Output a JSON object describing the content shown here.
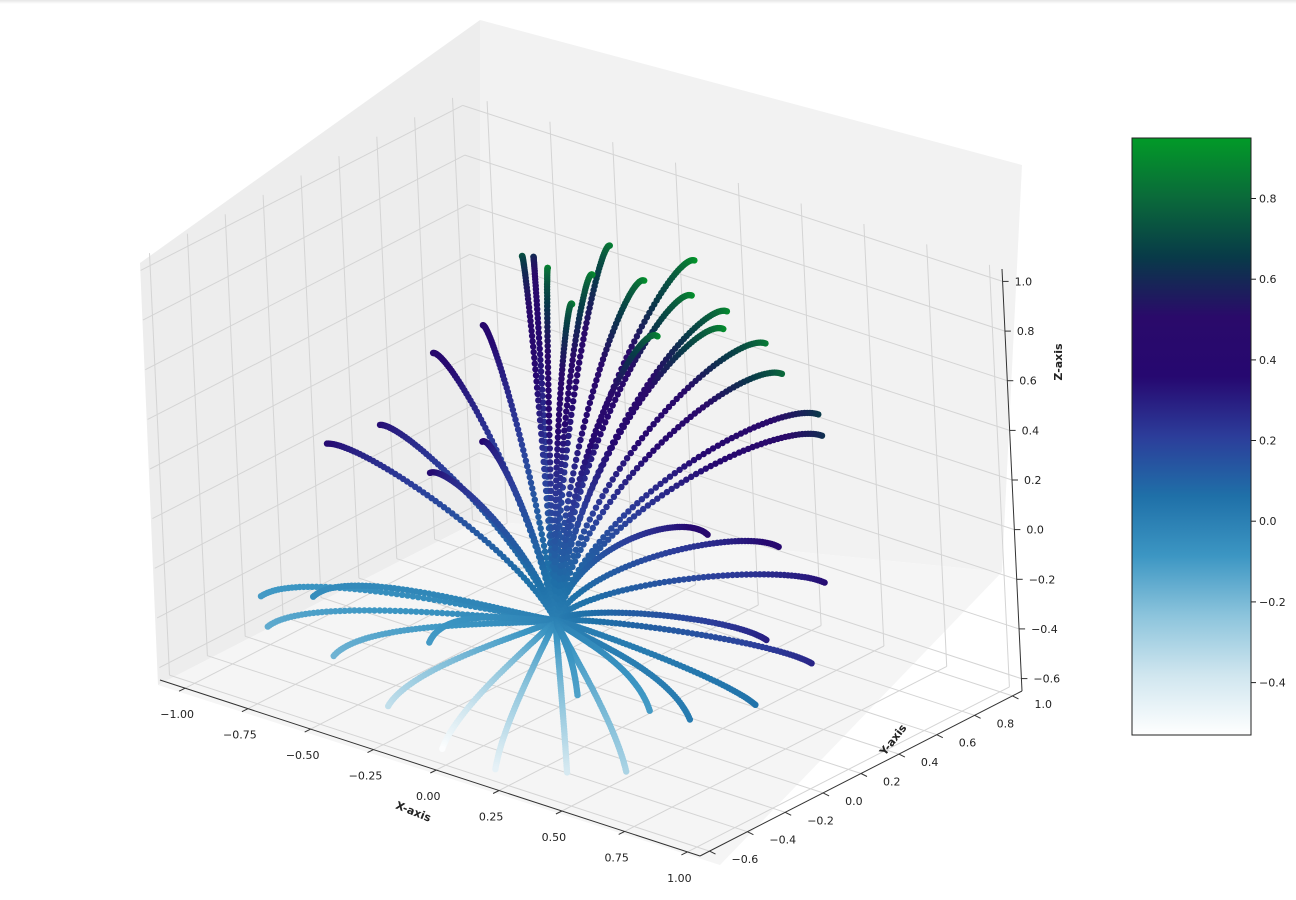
{
  "chart_data": {
    "type": "scatter",
    "projection": "3d",
    "xlabel": "X-axis",
    "ylabel": "Y-axis",
    "zlabel": "Z-axis",
    "xlim": [
      -1.1,
      1.05
    ],
    "ylim": [
      -0.65,
      1.05
    ],
    "zlim": [
      -0.65,
      1.05
    ],
    "x_ticks": [
      "−1.00",
      "−0.75",
      "−0.50",
      "−0.25",
      "0.00",
      "0.25",
      "0.50",
      "0.75",
      "1.00"
    ],
    "y_ticks": [
      "−0.6",
      "−0.4",
      "−0.2",
      "0.0",
      "0.2",
      "0.4",
      "0.6",
      "0.8",
      "1.0"
    ],
    "z_ticks": [
      "−0.6",
      "−0.4",
      "−0.2",
      "0.0",
      "0.2",
      "0.4",
      "0.6",
      "0.8",
      "1.0"
    ],
    "grid": true,
    "colormap": "ocean_r",
    "colormap_stops": [
      "#ffffff",
      "#d0e6ef",
      "#8cc4dc",
      "#3c96c3",
      "#1f70a8",
      "#2c3d9a",
      "#260870",
      "#2a0a6a",
      "#083a48",
      "#0a6a3a",
      "#029a28"
    ],
    "colorbar": {
      "range": [
        -0.53,
        0.95
      ],
      "ticks": [
        "−0.4",
        "−0.2",
        "0.0",
        "0.2",
        "0.4",
        "0.6",
        "0.8"
      ],
      "tick_values": [
        -0.4,
        -0.2,
        0.0,
        0.2,
        0.4,
        0.6,
        0.8
      ]
    },
    "center": [
      0.0,
      0.0,
      -0.3
    ],
    "series": [
      {
        "trajectories": [
          {
            "end": [
              -0.12,
              0.2,
              1.0
            ],
            "c": 0.92
          },
          {
            "end": [
              0.02,
              0.25,
              1.0
            ],
            "c": 0.93
          },
          {
            "end": [
              0.15,
              0.35,
              0.98
            ],
            "c": 0.93
          },
          {
            "end": [
              0.3,
              0.4,
              0.95
            ],
            "c": 0.92
          },
          {
            "end": [
              0.4,
              0.45,
              0.9
            ],
            "c": 0.9
          },
          {
            "end": [
              0.55,
              0.45,
              0.82
            ],
            "c": 0.85
          },
          {
            "end": [
              0.65,
              0.4,
              0.75
            ],
            "c": 0.8
          },
          {
            "end": [
              0.75,
              0.45,
              0.6
            ],
            "c": 0.65
          },
          {
            "end": [
              0.8,
              0.4,
              0.55
            ],
            "c": 0.62
          },
          {
            "end": [
              -0.3,
              0.3,
              0.95
            ],
            "c": 0.75
          },
          {
            "end": [
              -0.1,
              0.5,
              0.98
            ],
            "c": 0.88
          },
          {
            "end": [
              0.2,
              0.55,
              1.0
            ],
            "c": 0.94
          },
          {
            "end": [
              0.05,
              0.1,
              0.95
            ],
            "c": 0.9
          },
          {
            "end": [
              0.35,
              0.15,
              0.9
            ],
            "c": 0.9
          },
          {
            "end": [
              0.5,
              0.3,
              0.92
            ],
            "c": 0.91
          },
          {
            "end": [
              -0.45,
              0.55,
              0.8
            ],
            "c": 0.62
          },
          {
            "end": [
              -0.55,
              0.4,
              0.55
            ],
            "c": 0.45
          },
          {
            "end": [
              -0.6,
              0.2,
              0.5
            ],
            "c": 0.45
          },
          {
            "end": [
              -0.75,
              0.1,
              0.2
            ],
            "c": 0.35
          },
          {
            "end": [
              -0.85,
              -0.05,
              0.15
            ],
            "c": 0.35
          },
          {
            "end": [
              -0.4,
              -0.1,
              0.2
            ],
            "c": 0.35
          },
          {
            "end": [
              -0.3,
              0.05,
              0.3
            ],
            "c": 0.38
          },
          {
            "end": [
              0.8,
              0.15,
              0.2
            ],
            "c": 0.4
          },
          {
            "end": [
              0.9,
              0.25,
              0.05
            ],
            "c": 0.35
          },
          {
            "end": [
              0.85,
              0.0,
              -0.1
            ],
            "c": 0.3
          },
          {
            "end": [
              0.95,
              0.1,
              -0.2
            ],
            "c": 0.28
          },
          {
            "end": [
              0.75,
              -0.15,
              0.35
            ],
            "c": 0.42
          },
          {
            "end": [
              -0.7,
              -0.35,
              -0.3
            ],
            "c": -0.05
          },
          {
            "end": [
              -0.85,
              -0.4,
              -0.45
            ],
            "c": -0.15
          },
          {
            "end": [
              -0.95,
              -0.3,
              -0.4
            ],
            "c": -0.1
          },
          {
            "end": [
              -0.55,
              -0.45,
              -0.45
            ],
            "c": -0.18
          },
          {
            "end": [
              -0.3,
              -0.5,
              -0.55
            ],
            "c": -0.35
          },
          {
            "end": [
              -0.05,
              -0.55,
              -0.62
            ],
            "c": -0.52
          },
          {
            "end": [
              0.2,
              -0.6,
              -0.6
            ],
            "c": -0.45
          },
          {
            "end": [
              0.45,
              -0.55,
              -0.55
            ],
            "c": -0.4
          },
          {
            "end": [
              0.65,
              -0.5,
              -0.5
            ],
            "c": -0.3
          },
          {
            "end": [
              0.6,
              -0.3,
              -0.35
            ],
            "c": -0.1
          },
          {
            "end": [
              0.8,
              -0.35,
              -0.3
            ],
            "c": 0.02
          },
          {
            "end": [
              0.95,
              -0.2,
              -0.25
            ],
            "c": 0.05
          },
          {
            "end": [
              0.35,
              -0.35,
              -0.35
            ],
            "c": -0.12
          },
          {
            "end": [
              -0.2,
              -0.4,
              -0.3
            ],
            "c": -0.1
          }
        ]
      }
    ]
  }
}
